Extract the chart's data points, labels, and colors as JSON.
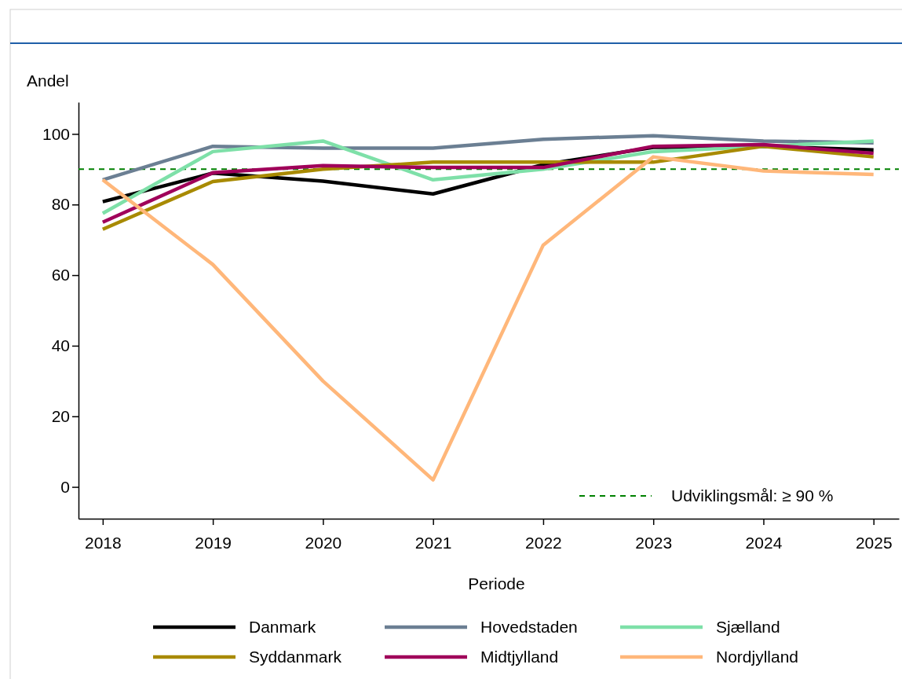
{
  "chart_data": {
    "type": "line",
    "xlabel": "Periode",
    "ylabel": "Andel",
    "x": [
      2018,
      2019,
      2020,
      2021,
      2022,
      2023,
      2024,
      2025
    ],
    "xlim": [
      2017.78,
      2025.23
    ],
    "xticks": [
      2018,
      2019,
      2020,
      2021,
      2022,
      2023,
      2024,
      2025
    ],
    "ylim": [
      -9,
      109
    ],
    "yticks": [
      0,
      20,
      40,
      60,
      80,
      100
    ],
    "grid": false,
    "legend": "bottom",
    "marker": "none",
    "line_style": "solid",
    "series": [
      {
        "name": "Danmark",
        "color": "#000000",
        "values": [
          80.8,
          88.9,
          86.6,
          83,
          91.3,
          96.2,
          96.5,
          95.5
        ]
      },
      {
        "name": "Hovedstaden",
        "color": "#6b7f93",
        "values": [
          87,
          96.5,
          96,
          96,
          98.5,
          99.5,
          98,
          97.5
        ]
      },
      {
        "name": "Sjælland",
        "color": "#7ee0a8",
        "values": [
          77.5,
          95,
          98,
          87,
          90,
          95,
          96.5,
          98
        ]
      },
      {
        "name": "Syddanmark",
        "color": "#a88a00",
        "values": [
          73,
          86.5,
          90,
          92,
          92,
          92,
          96.5,
          93.5
        ]
      },
      {
        "name": "Midtjylland",
        "color": "#a0005a",
        "values": [
          75,
          89,
          91,
          90.5,
          90.5,
          96.5,
          97,
          94.5
        ]
      },
      {
        "name": "Nordjylland",
        "color": "#ffb77a",
        "values": [
          87,
          63,
          30,
          2,
          68.5,
          93.5,
          89.5,
          88.5
        ]
      }
    ],
    "ref_lines": [
      {
        "axis": "y",
        "value": 90,
        "label": "Udviklingsmål: ≥ 90 %",
        "color": "#008000",
        "line_style": "dashed"
      }
    ]
  }
}
